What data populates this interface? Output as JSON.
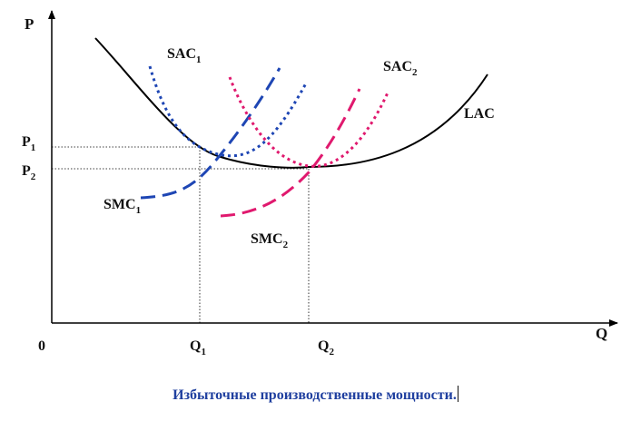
{
  "axes": {
    "y_label": "P",
    "x_label": "Q",
    "origin_label": "0"
  },
  "price_ticks": [
    {
      "main": "P",
      "sub": "1"
    },
    {
      "main": "P",
      "sub": "2"
    }
  ],
  "quantity_ticks": [
    {
      "main": "Q",
      "sub": "1"
    },
    {
      "main": "Q",
      "sub": "2"
    }
  ],
  "curves": {
    "lac": {
      "label": "LAC",
      "color": "#000000"
    },
    "sac1": {
      "main": "SAC",
      "sub": "1",
      "color": "#1e46b4"
    },
    "smc1": {
      "main": "SMC",
      "sub": "1",
      "color": "#1e46b4"
    },
    "sac2": {
      "main": "SAC",
      "sub": "2",
      "color": "#e0196e"
    },
    "smc2": {
      "main": "SMC",
      "sub": "2",
      "color": "#e0196e"
    }
  },
  "caption": "Избыточные производственные мощности."
}
